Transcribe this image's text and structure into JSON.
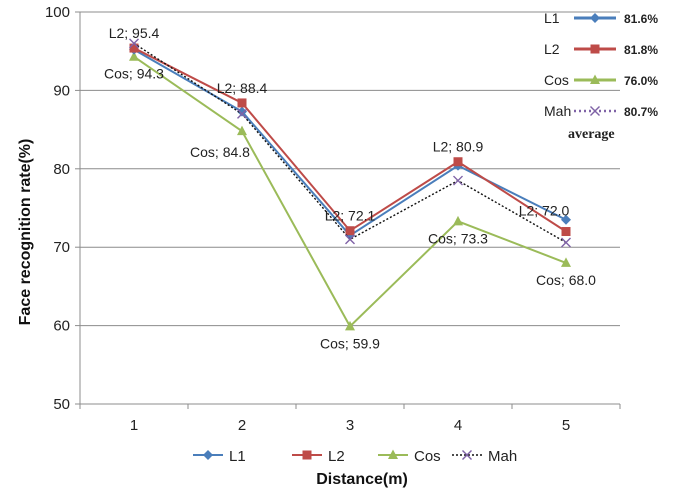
{
  "chart_data": {
    "type": "line",
    "xlabel": "Distance(m)",
    "ylabel": "Face recognition rate(%)",
    "ylim": [
      50,
      100
    ],
    "yticks": [
      50,
      60,
      70,
      80,
      90,
      100
    ],
    "categories": [
      "1",
      "2",
      "3",
      "4",
      "5"
    ],
    "grid": "horizontal",
    "legend_position": "bottom",
    "series": [
      {
        "name": "L1",
        "values": [
          95.2,
          87.3,
          71.5,
          80.4,
          73.5
        ],
        "color": "#4A7EBB",
        "marker": "diamond",
        "dash": "solid"
      },
      {
        "name": "L2",
        "values": [
          95.4,
          88.4,
          72.1,
          80.9,
          72.0
        ],
        "color": "#BE4B48",
        "marker": "square",
        "dash": "solid"
      },
      {
        "name": "Cos",
        "values": [
          94.3,
          84.8,
          59.9,
          73.3,
          68.0
        ],
        "color": "#9BBB59",
        "marker": "triangle",
        "dash": "solid"
      },
      {
        "name": "Mah",
        "values": [
          96.0,
          87.0,
          71.0,
          78.5,
          70.6
        ],
        "color": "#7F62A6",
        "marker": "x",
        "dash": "dotted"
      }
    ],
    "data_labels": [
      {
        "text": "L2; 95.4",
        "series": "L2",
        "index": 0,
        "pos": "above"
      },
      {
        "text": "Cos; 94.3",
        "series": "Cos",
        "index": 0,
        "pos": "below"
      },
      {
        "text": "L2; 88.4",
        "series": "L2",
        "index": 1,
        "pos": "above"
      },
      {
        "text": "Cos; 84.8",
        "series": "Cos",
        "index": 1,
        "pos": "belowleft"
      },
      {
        "text": "L2; 72.1",
        "series": "L2",
        "index": 2,
        "pos": "above"
      },
      {
        "text": "Cos; 59.9",
        "series": "Cos",
        "index": 2,
        "pos": "below"
      },
      {
        "text": "L2; 80.9",
        "series": "L2",
        "index": 3,
        "pos": "above"
      },
      {
        "text": "Cos; 73.3",
        "series": "Cos",
        "index": 3,
        "pos": "below"
      },
      {
        "text": "L2; 72.0",
        "series": "L2",
        "index": 4,
        "pos": "aboveleft"
      },
      {
        "text": "Cos; 68.0",
        "series": "Cos",
        "index": 4,
        "pos": "below"
      }
    ],
    "inset_legend": {
      "items": [
        {
          "name": "L1",
          "value": "81.6%",
          "color": "#4A7EBB",
          "marker": "diamond",
          "dash": "solid"
        },
        {
          "name": "L2",
          "value": "81.8%",
          "color": "#BE4B48",
          "marker": "square",
          "dash": "solid"
        },
        {
          "name": "Cos",
          "value": "76.0%",
          "color": "#9BBB59",
          "marker": "triangle",
          "dash": "solid"
        },
        {
          "name": "Mah",
          "value": "80.7%",
          "color": "#7F62A6",
          "marker": "x",
          "dash": "dotted"
        }
      ],
      "caption": "average"
    }
  }
}
